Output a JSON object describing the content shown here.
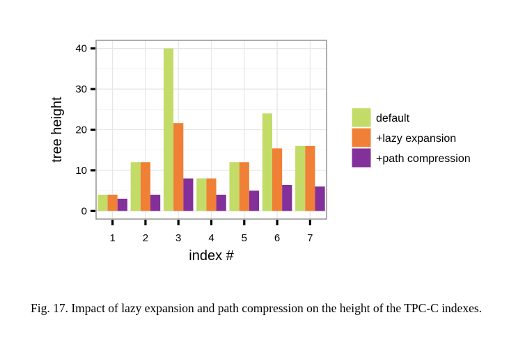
{
  "chart_data": {
    "type": "bar",
    "categories": [
      "1",
      "2",
      "3",
      "4",
      "5",
      "6",
      "7"
    ],
    "series": [
      {
        "name": "default",
        "color": "#c2dc67",
        "values": [
          4,
          12,
          40,
          8,
          12,
          24,
          16
        ]
      },
      {
        "name": "+lazy expansion",
        "color": "#f08036",
        "values": [
          4,
          12,
          21.6,
          8,
          12,
          15.4,
          16
        ]
      },
      {
        "name": "+path compression",
        "color": "#83309a",
        "values": [
          3,
          4,
          8,
          4,
          5,
          6.4,
          6
        ]
      }
    ],
    "xlabel": "index #",
    "ylabel": "tree height",
    "ylim": [
      -2,
      42
    ],
    "yticks": [
      0,
      10,
      20,
      30,
      40
    ],
    "grid": true,
    "legend_position": "right",
    "panel_background": "#ffffff",
    "grid_color": "#e6e6e6"
  },
  "caption": "Fig. 17.    Impact of lazy expansion and path compression on the height of the TPC-C indexes."
}
